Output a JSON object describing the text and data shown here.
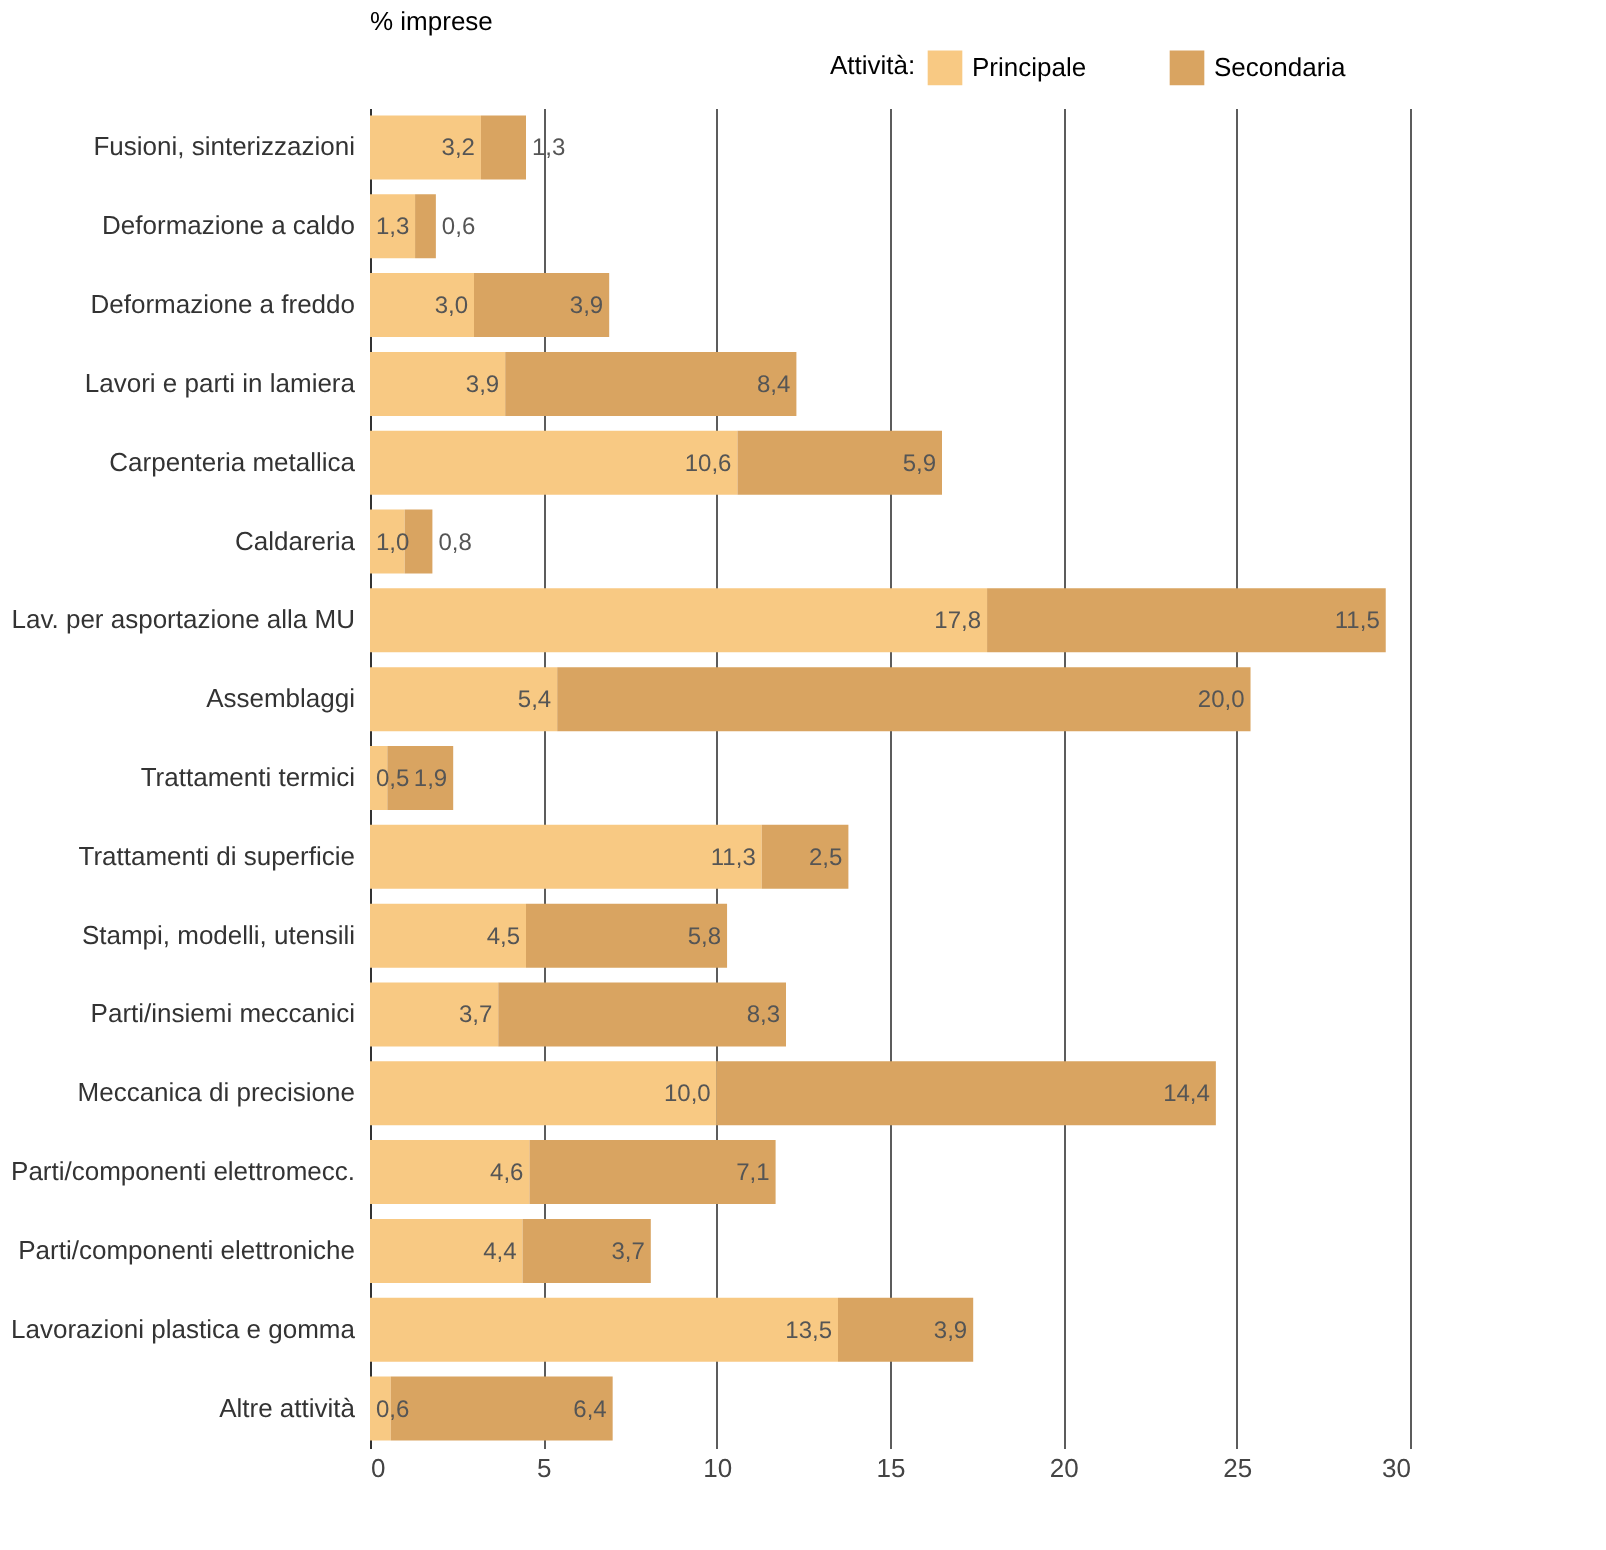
{
  "chart_data": {
    "type": "bar",
    "orientation": "horizontal",
    "stacked": true,
    "xlabel": "% imprese",
    "legend_title": "Attività:",
    "legend": "top right",
    "grid": "x",
    "categories": [
      "Fusioni, sinterizzazioni",
      "Deformazione a caldo",
      "Deformazione a freddo",
      "Lavori e parti in lamiera",
      "Carpenteria metallica",
      "Caldareria",
      "Lav. per asportazione alla MU",
      "Assemblaggi",
      "Trattamenti termici",
      "Trattamenti di superficie",
      "Stampi, modelli, utensili",
      "Parti/insiemi meccanici",
      "Meccanica di precisione",
      "Parti/componenti elettromecc.",
      "Parti/componenti elettroniche",
      "Lavorazioni plastica e gomma",
      "Altre attività"
    ],
    "series": [
      {
        "name": "Principale",
        "color": "#f8c983",
        "values": [
          3.2,
          1.3,
          3.0,
          3.9,
          10.6,
          1.0,
          17.8,
          5.4,
          0.5,
          11.3,
          4.5,
          3.7,
          10.0,
          4.6,
          4.4,
          13.5,
          0.6
        ],
        "value_labels": [
          "3,2",
          "1,3",
          "3,0",
          "3,9",
          "10,6",
          "1,0",
          "17,8",
          "5,4",
          "0,5",
          "11,3",
          "4,5",
          "3,7",
          "10,0",
          "4,6",
          "4,4",
          "13,5",
          "0,6"
        ]
      },
      {
        "name": "Secondaria",
        "color": "#d9a461",
        "values": [
          1.3,
          0.6,
          3.9,
          8.4,
          5.9,
          0.8,
          11.5,
          20.0,
          1.9,
          2.5,
          5.8,
          8.3,
          14.4,
          7.1,
          3.7,
          3.9,
          6.4
        ],
        "value_labels": [
          "1,3",
          "0,6",
          "3,9",
          "8,4",
          "5,9",
          "0,8",
          "11,5",
          "20,0",
          "1,9",
          "2,5",
          "5,8",
          "8,3",
          "14,4",
          "7,1",
          "3,7",
          "3,9",
          "6,4"
        ]
      }
    ],
    "xlim": [
      0,
      30
    ],
    "xticks": [
      0,
      5,
      10,
      15,
      20,
      25,
      30
    ]
  }
}
